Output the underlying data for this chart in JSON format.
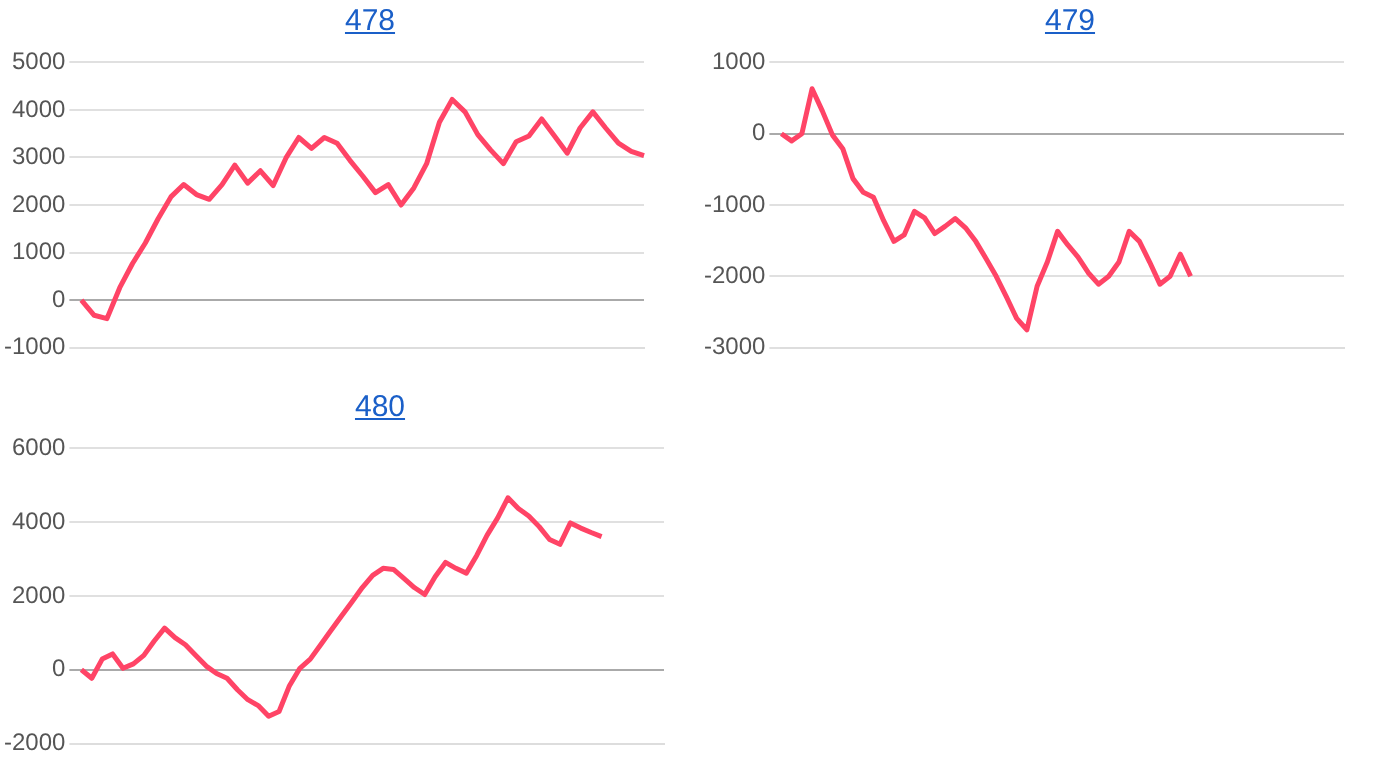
{
  "chart_data": [
    {
      "type": "line",
      "title": "478",
      "categories": [
        null,
        null,
        null,
        null,
        null,
        null,
        null,
        null,
        null,
        null,
        null,
        null,
        null,
        null,
        null,
        null,
        null,
        null,
        null,
        null,
        null,
        null,
        null,
        null,
        null,
        null,
        null,
        null,
        null,
        null,
        null,
        null,
        null,
        null,
        null,
        null,
        null,
        null,
        null,
        null,
        null,
        null,
        null,
        null,
        null
      ],
      "series": [
        {
          "color": "#ff4466",
          "values": [
            0,
            -320,
            -390,
            260,
            770,
            1200,
            1710,
            2170,
            2430,
            2220,
            2120,
            2430,
            2840,
            2460,
            2720,
            2410,
            2990,
            3420,
            3190,
            3420,
            3300,
            2940,
            2610,
            2260,
            2430,
            2000,
            2360,
            2870,
            3740,
            4220,
            3960,
            3480,
            3160,
            2870,
            3330,
            3450,
            3810,
            3450,
            3090,
            3620,
            3960,
            3620,
            3300,
            3130,
            3040
          ]
        }
      ],
      "ylim": [
        -1000,
        5000
      ],
      "yticks": [
        -1000,
        0,
        1000,
        2000,
        3000,
        4000,
        5000
      ],
      "grid": "y",
      "marker": "none",
      "line_style": "solid"
    },
    {
      "type": "line",
      "title": "479",
      "categories": [
        null,
        null,
        null,
        null,
        null,
        null,
        null,
        null,
        null,
        null,
        null,
        null,
        null,
        null,
        null,
        null,
        null,
        null,
        null,
        null,
        null,
        null,
        null,
        null,
        null,
        null,
        null,
        null,
        null,
        null,
        null,
        null,
        null,
        null,
        null,
        null,
        null,
        null,
        null,
        null,
        null,
        null,
        null,
        null,
        null,
        null,
        null,
        null,
        null,
        null,
        null,
        null,
        null,
        null,
        null,
        null
      ],
      "series": [
        {
          "color": "#ff4466",
          "values": [
            0,
            -100,
            0,
            630,
            320,
            -20,
            -210,
            -630,
            -820,
            -890,
            -1220,
            -1510,
            -1420,
            -1090,
            -1180,
            -1400,
            -1300,
            -1190,
            -1320,
            -1510,
            -1750,
            -2000,
            -2290,
            -2590,
            -2750,
            -2140,
            -1800,
            -1370,
            -1560,
            -1730,
            -1950,
            -2110,
            -2000,
            -1800,
            -1370,
            -1510,
            -1800,
            -2110,
            -2000,
            -1690,
            -2000,
            null,
            null,
            null,
            null,
            null,
            null,
            null,
            null,
            null,
            null,
            null,
            null,
            null,
            null,
            null
          ]
        }
      ],
      "ylim": [
        -3000,
        1000
      ],
      "yticks": [
        -3000,
        -2000,
        -1000,
        0,
        1000
      ],
      "grid": "y",
      "marker": "none",
      "line_style": "solid"
    },
    {
      "type": "line",
      "title": "480",
      "categories": [
        null,
        null,
        null,
        null,
        null,
        null,
        null,
        null,
        null,
        null,
        null,
        null,
        null,
        null,
        null,
        null,
        null,
        null,
        null,
        null,
        null,
        null,
        null,
        null,
        null,
        null,
        null,
        null,
        null,
        null,
        null,
        null,
        null,
        null,
        null,
        null,
        null,
        null,
        null,
        null,
        null,
        null,
        null,
        null,
        null,
        null,
        null,
        null,
        null,
        null,
        null,
        null,
        null,
        null,
        null,
        null,
        null
      ],
      "series": [
        {
          "color": "#ff4466",
          "values": [
            0,
            -230,
            290,
            430,
            40,
            160,
            390,
            780,
            1130,
            870,
            680,
            390,
            100,
            -100,
            -230,
            -540,
            -810,
            -970,
            -1260,
            -1130,
            -430,
            40,
            290,
            680,
            1070,
            1460,
            1840,
            2230,
            2560,
            2750,
            2720,
            2480,
            2230,
            2040,
            2520,
            2910,
            2750,
            2620,
            3100,
            3650,
            4110,
            4660,
            4370,
            4170,
            3880,
            3530,
            3400,
            3980,
            3840,
            3720,
            3610,
            null,
            null,
            null,
            null,
            null,
            null
          ]
        }
      ],
      "ylim": [
        -2000,
        6000
      ],
      "yticks": [
        -2000,
        0,
        2000,
        4000,
        6000
      ],
      "grid": "y",
      "marker": "none",
      "line_style": "solid"
    }
  ]
}
